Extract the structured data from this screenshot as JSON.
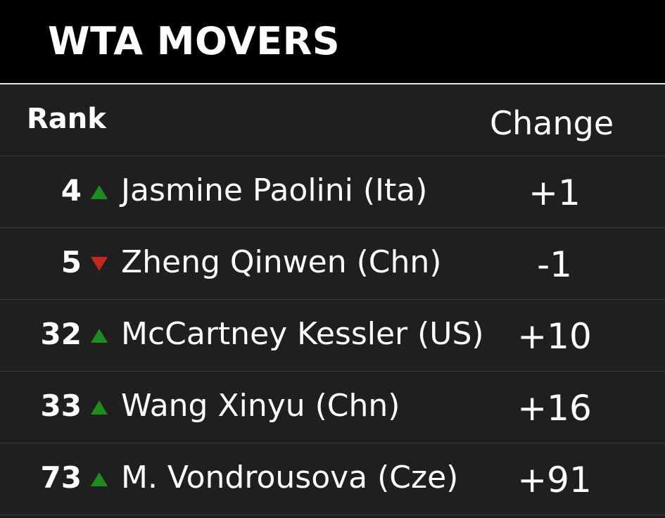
{
  "title": "WTA MOVERS",
  "header": {
    "rank_label": "Rank",
    "change_label": "Change"
  },
  "colors": {
    "up": "#1e8c1e",
    "down": "#c4281c",
    "background": "#1f1f1f",
    "title_background": "#000000"
  },
  "rows": [
    {
      "rank": "4",
      "direction": "up",
      "direction_icon": "up-arrow-icon",
      "player": "Jasmine Paolini (Ita)",
      "change": "+1"
    },
    {
      "rank": "5",
      "direction": "down",
      "direction_icon": "down-arrow-icon",
      "player": "Zheng Qinwen (Chn)",
      "change": "-1"
    },
    {
      "rank": "32",
      "direction": "up",
      "direction_icon": "up-arrow-icon",
      "player": "McCartney Kessler (US)",
      "change": "+10"
    },
    {
      "rank": "33",
      "direction": "up",
      "direction_icon": "up-arrow-icon",
      "player": "Wang Xinyu (Chn)",
      "change": "+16"
    },
    {
      "rank": "73",
      "direction": "up",
      "direction_icon": "up-arrow-icon",
      "player": "M. Vondrousova (Cze)",
      "change": "+91"
    }
  ]
}
